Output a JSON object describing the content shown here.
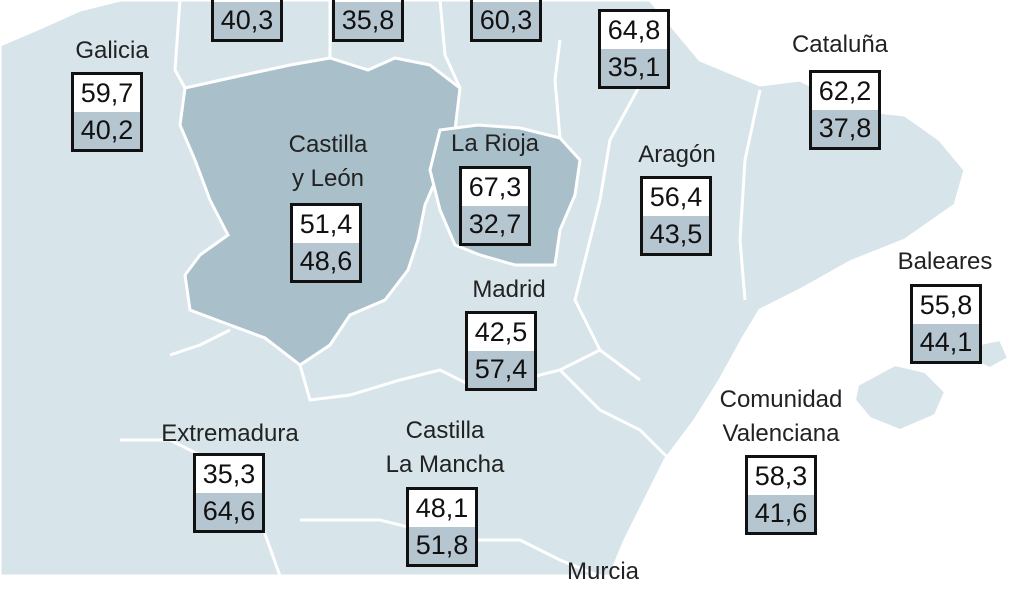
{
  "colors": {
    "sea": "#ffffff",
    "land": "#d7e4ea",
    "highlight": "#a9bfca",
    "border": "#ffffff",
    "lower_value_bg": "#b5c6d1",
    "upper_value_bg": "#ffffff",
    "box_border": "#111111"
  },
  "regions": [
    {
      "id": "asturias",
      "name": "",
      "upper": "",
      "lower": "40,3"
    },
    {
      "id": "cantabria",
      "name": "",
      "upper": "",
      "lower": "35,8"
    },
    {
      "id": "pais-vasco",
      "name": "",
      "upper": "",
      "lower": "60,3"
    },
    {
      "id": "navarra",
      "name": "",
      "upper": "64,8",
      "lower": "35,1"
    },
    {
      "id": "galicia",
      "name": "Galicia",
      "upper": "59,7",
      "lower": "40,2"
    },
    {
      "id": "cataluna",
      "name": "Cataluña",
      "upper": "62,2",
      "lower": "37,8"
    },
    {
      "id": "castilla-leon",
      "name": "Castilla\ny León",
      "upper": "51,4",
      "lower": "48,6",
      "highlighted": true
    },
    {
      "id": "la-rioja",
      "name": "La Rioja",
      "upper": "67,3",
      "lower": "32,7",
      "highlighted": true
    },
    {
      "id": "aragon",
      "name": "Aragón",
      "upper": "56,4",
      "lower": "43,5"
    },
    {
      "id": "baleares",
      "name": "Baleares",
      "upper": "55,8",
      "lower": "44,1"
    },
    {
      "id": "madrid",
      "name": "Madrid",
      "upper": "42,5",
      "lower": "57,4"
    },
    {
      "id": "extremadura",
      "name": "Extremadura",
      "upper": "35,3",
      "lower": "64,6"
    },
    {
      "id": "castilla-la-mancha",
      "name": "Castilla\nLa Mancha",
      "upper": "48,1",
      "lower": "51,8"
    },
    {
      "id": "comunidad-valenciana",
      "name": "Comunidad\nValenciana",
      "upper": "58,3",
      "lower": "41,6"
    },
    {
      "id": "murcia",
      "name": "Murcia",
      "upper": "",
      "lower": ""
    }
  ]
}
